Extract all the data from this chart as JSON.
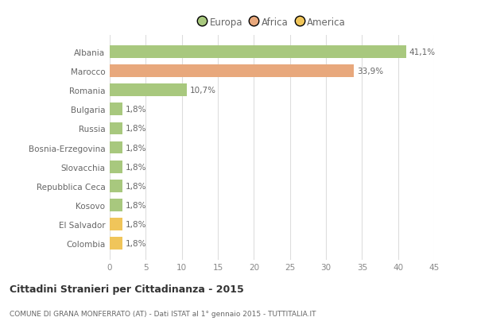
{
  "categories": [
    "Albania",
    "Marocco",
    "Romania",
    "Bulgaria",
    "Russia",
    "Bosnia-Erzegovina",
    "Slovacchia",
    "Repubblica Ceca",
    "Kosovo",
    "El Salvador",
    "Colombia"
  ],
  "values": [
    41.1,
    33.9,
    10.7,
    1.8,
    1.8,
    1.8,
    1.8,
    1.8,
    1.8,
    1.8,
    1.8
  ],
  "labels": [
    "41,1%",
    "33,9%",
    "10,7%",
    "1,8%",
    "1,8%",
    "1,8%",
    "1,8%",
    "1,8%",
    "1,8%",
    "1,8%",
    "1,8%"
  ],
  "colors": [
    "#a8c87e",
    "#e8a87c",
    "#a8c87e",
    "#a8c87e",
    "#a8c87e",
    "#a8c87e",
    "#a8c87e",
    "#a8c87e",
    "#a8c87e",
    "#f0c55a",
    "#f0c55a"
  ],
  "legend_labels": [
    "Europa",
    "Africa",
    "America"
  ],
  "legend_colors": [
    "#a8c87e",
    "#e8a87c",
    "#f0c55a"
  ],
  "xlim": [
    0,
    45
  ],
  "xticks": [
    0,
    5,
    10,
    15,
    20,
    25,
    30,
    35,
    40,
    45
  ],
  "title": "Cittadini Stranieri per Cittadinanza - 2015",
  "subtitle": "COMUNE DI GRANA MONFERRATO (AT) - Dati ISTAT al 1° gennaio 2015 - TUTTITALIA.IT",
  "bg_color": "#ffffff",
  "grid_color": "#dddddd",
  "bar_height": 0.65
}
